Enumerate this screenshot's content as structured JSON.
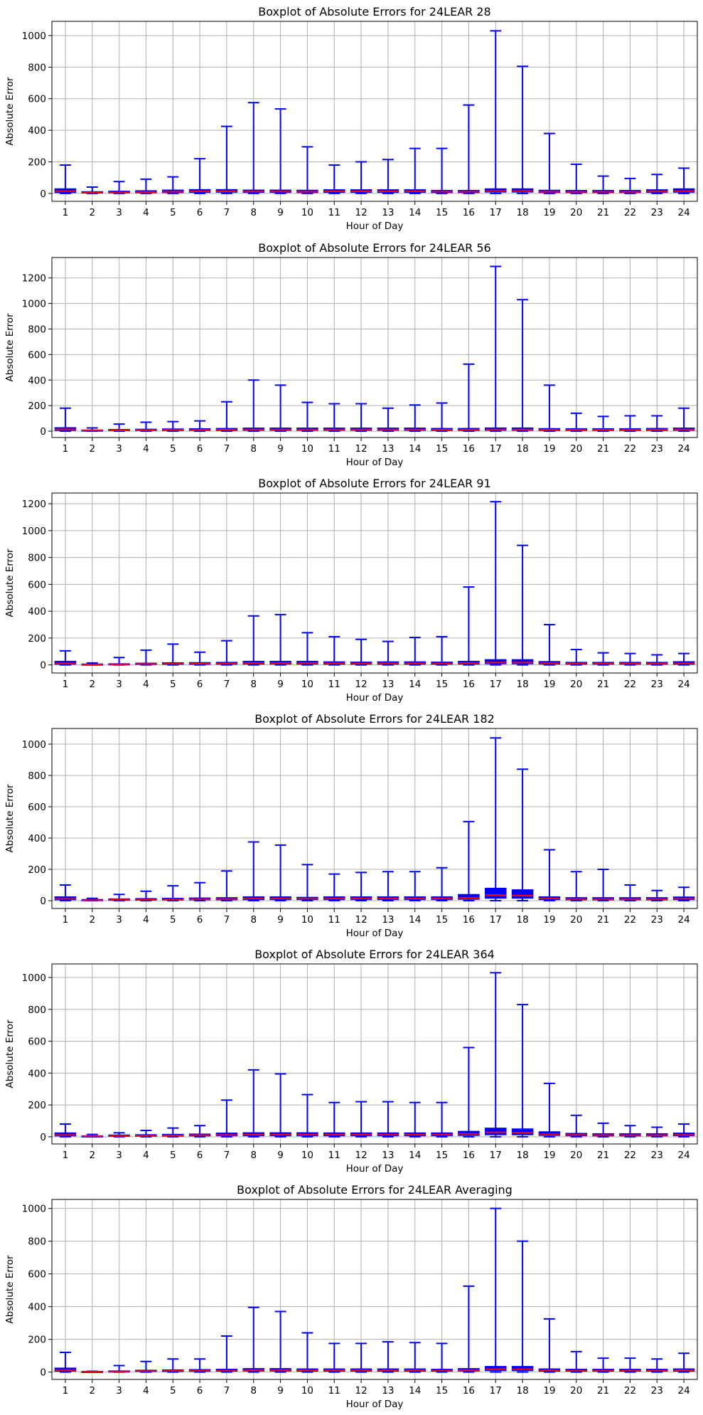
{
  "colors": {
    "box": "#0000ff",
    "median": "#ff0000",
    "grid": "#b0b0b0",
    "axis": "#000000"
  },
  "chart_data": [
    {
      "type": "boxplot",
      "title": "Boxplot of Absolute Errors for 24LEAR 28",
      "xlabel": "Hour of Day",
      "ylabel": "Absolute Error",
      "grid": true,
      "ylim": [
        -50,
        1090
      ],
      "yticks": [
        0,
        200,
        400,
        600,
        800,
        1000
      ],
      "categories": [
        "1",
        "2",
        "3",
        "4",
        "5",
        "6",
        "7",
        "8",
        "9",
        "10",
        "11",
        "12",
        "13",
        "14",
        "15",
        "16",
        "17",
        "18",
        "19",
        "20",
        "21",
        "22",
        "23",
        "24"
      ],
      "q1": [
        5,
        2,
        3,
        4,
        5,
        6,
        7,
        6,
        6,
        5,
        6,
        6,
        6,
        6,
        5,
        5,
        8,
        8,
        5,
        5,
        5,
        5,
        6,
        7
      ],
      "median": [
        15,
        6,
        7,
        9,
        11,
        13,
        13,
        12,
        12,
        11,
        13,
        13,
        13,
        13,
        11,
        11,
        16,
        16,
        11,
        10,
        10,
        10,
        12,
        15
      ],
      "q3": [
        30,
        12,
        15,
        18,
        22,
        25,
        25,
        22,
        22,
        21,
        24,
        24,
        24,
        24,
        20,
        20,
        30,
        30,
        21,
        20,
        20,
        20,
        24,
        30
      ],
      "whisker_high": [
        180,
        40,
        75,
        90,
        105,
        220,
        425,
        575,
        535,
        295,
        180,
        200,
        215,
        285,
        285,
        560,
        1030,
        805,
        380,
        185,
        110,
        95,
        120,
        160
      ]
    },
    {
      "type": "boxplot",
      "title": "Boxplot of Absolute Errors for 24LEAR 56",
      "xlabel": "Hour of Day",
      "ylabel": "Absolute Error",
      "grid": true,
      "ylim": [
        -50,
        1360
      ],
      "yticks": [
        0,
        200,
        400,
        600,
        800,
        1000,
        1200
      ],
      "categories": [
        "1",
        "2",
        "3",
        "4",
        "5",
        "6",
        "7",
        "8",
        "9",
        "10",
        "11",
        "12",
        "13",
        "14",
        "15",
        "16",
        "17",
        "18",
        "19",
        "20",
        "21",
        "22",
        "23",
        "24"
      ],
      "q1": [
        5,
        2,
        3,
        4,
        4,
        5,
        5,
        6,
        6,
        6,
        6,
        6,
        6,
        6,
        5,
        5,
        6,
        6,
        5,
        5,
        5,
        5,
        5,
        6
      ],
      "median": [
        14,
        5,
        7,
        8,
        9,
        10,
        11,
        13,
        13,
        13,
        13,
        13,
        13,
        13,
        11,
        11,
        13,
        13,
        11,
        10,
        10,
        10,
        11,
        13
      ],
      "q3": [
        28,
        10,
        14,
        16,
        18,
        20,
        22,
        25,
        25,
        25,
        25,
        25,
        25,
        25,
        22,
        22,
        26,
        26,
        21,
        20,
        20,
        20,
        22,
        25
      ],
      "whisker_high": [
        180,
        25,
        55,
        70,
        75,
        80,
        230,
        400,
        360,
        225,
        215,
        215,
        180,
        205,
        220,
        525,
        1290,
        1030,
        360,
        140,
        115,
        120,
        120,
        180
      ]
    },
    {
      "type": "boxplot",
      "title": "Boxplot of Absolute Errors for 24LEAR 91",
      "xlabel": "Hour of Day",
      "ylabel": "Absolute Error",
      "grid": true,
      "ylim": [
        -60,
        1280
      ],
      "yticks": [
        0,
        200,
        400,
        600,
        800,
        1000,
        1200
      ],
      "categories": [
        "1",
        "2",
        "3",
        "4",
        "5",
        "6",
        "7",
        "8",
        "9",
        "10",
        "11",
        "12",
        "13",
        "14",
        "15",
        "16",
        "17",
        "18",
        "19",
        "20",
        "21",
        "22",
        "23",
        "24"
      ],
      "q1": [
        5,
        1,
        2,
        3,
        4,
        4,
        5,
        6,
        6,
        6,
        5,
        5,
        5,
        5,
        5,
        6,
        8,
        8,
        6,
        5,
        5,
        5,
        5,
        5
      ],
      "median": [
        12,
        3,
        5,
        7,
        8,
        9,
        10,
        14,
        14,
        14,
        12,
        11,
        12,
        12,
        11,
        14,
        18,
        18,
        13,
        10,
        10,
        10,
        10,
        12
      ],
      "q3": [
        28,
        8,
        10,
        14,
        17,
        18,
        20,
        28,
        28,
        28,
        24,
        22,
        24,
        24,
        22,
        28,
        40,
        40,
        26,
        20,
        20,
        20,
        20,
        25
      ],
      "whisker_high": [
        105,
        15,
        55,
        110,
        155,
        95,
        180,
        365,
        375,
        240,
        210,
        190,
        175,
        205,
        210,
        580,
        1215,
        890,
        300,
        115,
        90,
        85,
        75,
        85
      ]
    },
    {
      "type": "boxplot",
      "title": "Boxplot of Absolute Errors for 24LEAR 182",
      "xlabel": "Hour of Day",
      "ylabel": "Absolute Error",
      "grid": true,
      "ylim": [
        -50,
        1100
      ],
      "yticks": [
        0,
        200,
        400,
        600,
        800,
        1000
      ],
      "categories": [
        "1",
        "2",
        "3",
        "4",
        "5",
        "6",
        "7",
        "8",
        "9",
        "10",
        "11",
        "12",
        "13",
        "14",
        "15",
        "16",
        "17",
        "18",
        "19",
        "20",
        "21",
        "22",
        "23",
        "24"
      ],
      "q1": [
        5,
        1,
        2,
        3,
        4,
        5,
        5,
        6,
        6,
        6,
        6,
        6,
        6,
        6,
        6,
        8,
        15,
        15,
        6,
        5,
        5,
        5,
        5,
        6
      ],
      "median": [
        12,
        3,
        6,
        7,
        8,
        10,
        11,
        13,
        13,
        12,
        13,
        13,
        13,
        13,
        13,
        18,
        35,
        32,
        13,
        10,
        10,
        10,
        10,
        12
      ],
      "q3": [
        25,
        8,
        12,
        14,
        16,
        18,
        20,
        25,
        25,
        22,
        25,
        25,
        25,
        25,
        25,
        40,
        80,
        70,
        25,
        20,
        20,
        20,
        20,
        24
      ],
      "whisker_high": [
        100,
        15,
        40,
        60,
        95,
        115,
        190,
        375,
        355,
        230,
        170,
        180,
        185,
        185,
        210,
        505,
        1040,
        840,
        325,
        185,
        200,
        100,
        65,
        85
      ]
    },
    {
      "type": "boxplot",
      "title": "Boxplot of Absolute Errors for 24LEAR 364",
      "xlabel": "Hour of Day",
      "ylabel": "Absolute Error",
      "grid": true,
      "ylim": [
        -45,
        1085
      ],
      "yticks": [
        0,
        200,
        400,
        600,
        800,
        1000
      ],
      "categories": [
        "1",
        "2",
        "3",
        "4",
        "5",
        "6",
        "7",
        "8",
        "9",
        "10",
        "11",
        "12",
        "13",
        "14",
        "15",
        "16",
        "17",
        "18",
        "19",
        "20",
        "21",
        "22",
        "23",
        "24"
      ],
      "q1": [
        5,
        1,
        2,
        3,
        4,
        5,
        6,
        6,
        6,
        6,
        6,
        6,
        6,
        6,
        6,
        8,
        12,
        12,
        8,
        6,
        5,
        5,
        5,
        6
      ],
      "median": [
        12,
        3,
        5,
        7,
        8,
        10,
        12,
        13,
        13,
        13,
        13,
        13,
        13,
        13,
        13,
        18,
        28,
        26,
        16,
        12,
        10,
        10,
        10,
        12
      ],
      "q3": [
        25,
        7,
        12,
        14,
        16,
        18,
        24,
        26,
        26,
        26,
        25,
        25,
        25,
        25,
        25,
        35,
        55,
        50,
        32,
        22,
        20,
        20,
        20,
        24
      ],
      "whisker_high": [
        80,
        15,
        25,
        40,
        55,
        70,
        230,
        420,
        395,
        265,
        215,
        220,
        220,
        215,
        215,
        560,
        1030,
        830,
        335,
        135,
        85,
        70,
        60,
        80
      ]
    },
    {
      "type": "boxplot",
      "title": "Boxplot of Absolute Errors for 24LEAR Averaging",
      "xlabel": "Hour of Day",
      "ylabel": "Absolute Error",
      "grid": true,
      "ylim": [
        -45,
        1055
      ],
      "yticks": [
        0,
        200,
        400,
        600,
        800,
        1000
      ],
      "categories": [
        "1",
        "2",
        "3",
        "4",
        "5",
        "6",
        "7",
        "8",
        "9",
        "10",
        "11",
        "12",
        "13",
        "14",
        "15",
        "16",
        "17",
        "18",
        "19",
        "20",
        "21",
        "22",
        "23",
        "24"
      ],
      "q1": [
        5,
        1,
        2,
        3,
        3,
        4,
        5,
        6,
        6,
        5,
        5,
        5,
        5,
        5,
        5,
        6,
        8,
        8,
        5,
        5,
        5,
        5,
        5,
        5
      ],
      "median": [
        12,
        2,
        4,
        6,
        7,
        9,
        10,
        12,
        12,
        11,
        11,
        11,
        11,
        11,
        10,
        12,
        18,
        18,
        11,
        10,
        10,
        10,
        10,
        11
      ],
      "q3": [
        25,
        5,
        8,
        12,
        14,
        16,
        18,
        22,
        22,
        20,
        20,
        20,
        20,
        20,
        18,
        22,
        35,
        35,
        20,
        18,
        18,
        18,
        18,
        20
      ],
      "whisker_high": [
        120,
        5,
        40,
        65,
        80,
        80,
        220,
        395,
        370,
        240,
        175,
        175,
        185,
        180,
        175,
        525,
        1000,
        800,
        325,
        125,
        85,
        85,
        80,
        115
      ]
    }
  ]
}
